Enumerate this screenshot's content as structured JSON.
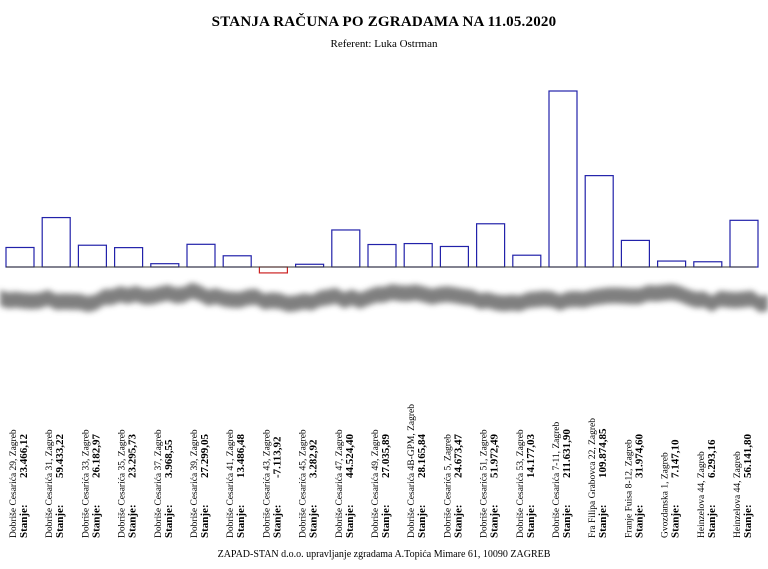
{
  "chart_data": {
    "type": "bar",
    "title": "STANJA RAČUNA PO ZGRADAMA NA 11.05.2020",
    "subtitle": "Referent: Luka Ostrman",
    "value_prefix": "Stanje:",
    "categories": [
      "Dobriše Cesarića 29, Zagreb",
      "Dobriše Cesarića 31, Zagreb",
      "Dobriše Cesarića 33, Zagreb",
      "Dobriše Cesarića 35, Zagreb",
      "Dobriše Cesarića 37, Zagreb",
      "Dobriše Cesarića 39, Zagreb",
      "Dobriše Cesarića 41, Zagreb",
      "Dobriše Cesarića 43, Zagreb",
      "Dobriše Cesarića 45, Zagreb",
      "Dobriše Cesarića 47, Zagreb",
      "Dobriše Cesarića 49, Zagreb",
      "Dobriše Cesarića 4B-GPM, Zagreb",
      "Dobriše Cesarića 5, Zagreb",
      "Dobriše Cesarića 51, Zagreb",
      "Dobriše Cesarića 53, Zagreb",
      "Dobriše Cesarića 7-11, Zagreb",
      "Fra Filipa Grabovca 22, Zagreb",
      "Franje Fuisa 8-12, Zagreb",
      "Gvozdanska 1, Zagreb",
      "Heinzelova 44, Zagreb",
      "Heinzelova 44, Zagreb"
    ],
    "values": [
      23466.12,
      59433.22,
      26182.97,
      23295.73,
      3968.55,
      27299.05,
      13486.48,
      -7113.92,
      3282.92,
      44524.4,
      27035.89,
      28165.84,
      24673.47,
      51972.49,
      14177.03,
      211631.9,
      109874.85,
      31974.6,
      7147.1,
      6293.16,
      56141.8
    ],
    "value_labels": [
      "23.466,12",
      "59.433,22",
      "26.182,97",
      "23.295,73",
      "3.968,55",
      "27.299,05",
      "13.486,48",
      "-7.113,92",
      "3.282,92",
      "44.524,40",
      "27.035,89",
      "28.165,84",
      "24.673,47",
      "51.972,49",
      "14.177,03",
      "211.631,90",
      "109.874,85",
      "31.974,60",
      "7.147,10",
      "6.293,16",
      "56.141,80"
    ],
    "colors": {
      "positive": "#2222aa",
      "negative": "#cc2222"
    },
    "grid": false,
    "legend": "none"
  },
  "footer": "ZAPAD-STAN d.o.o. upravljanje zgradama A.Topića Mimare 61, 10090 ZAGREB"
}
